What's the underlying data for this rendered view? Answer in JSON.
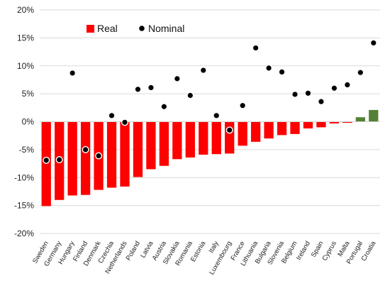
{
  "chart_data": {
    "type": "bar",
    "title": "",
    "xlabel": "",
    "ylabel": "",
    "ylim": [
      -0.2,
      0.2
    ],
    "yticks": [
      0.2,
      0.15,
      0.1,
      0.05,
      0.0,
      -0.05,
      -0.1,
      -0.15,
      -0.2
    ],
    "ytick_labels": [
      "20%",
      "15%",
      "10%",
      "5%",
      "0%",
      "-5%",
      "-10%",
      "-15%",
      "-20%"
    ],
    "grid": true,
    "legend_position": "top-left",
    "colors": {
      "negative": "#ff0000",
      "positive": "#548235",
      "nominal": "#000000"
    },
    "categories": [
      "Sweden",
      "Germany",
      "Hungary",
      "Finland",
      "Denmark",
      "Czechia",
      "Netherlands",
      "Poland",
      "Latvia",
      "Austria",
      "Slovakia",
      "Romania",
      "Estonia",
      "Italy",
      "Luxembourg",
      "France",
      "Lithuania",
      "Bulgaria",
      "Slovenia",
      "Belgium",
      "Ireland",
      "Spain",
      "Cyprus",
      "Malta",
      "Portugal",
      "Croatia"
    ],
    "series": [
      {
        "name": "Real",
        "kind": "bar",
        "values": [
          -0.151,
          -0.14,
          -0.132,
          -0.131,
          -0.122,
          -0.118,
          -0.116,
          -0.099,
          -0.085,
          -0.079,
          -0.067,
          -0.064,
          -0.059,
          -0.058,
          -0.057,
          -0.043,
          -0.036,
          -0.03,
          -0.024,
          -0.022,
          -0.012,
          -0.01,
          -0.003,
          -0.002,
          0.008,
          0.021
        ]
      },
      {
        "name": "Nominal",
        "kind": "scatter",
        "values": [
          -0.069,
          -0.068,
          0.087,
          -0.05,
          -0.061,
          0.011,
          -0.001,
          0.058,
          0.061,
          0.027,
          0.077,
          0.047,
          0.092,
          0.011,
          -0.015,
          0.029,
          0.132,
          0.096,
          0.089,
          0.049,
          0.051,
          0.036,
          0.06,
          0.066,
          0.088,
          0.141
        ]
      }
    ]
  }
}
